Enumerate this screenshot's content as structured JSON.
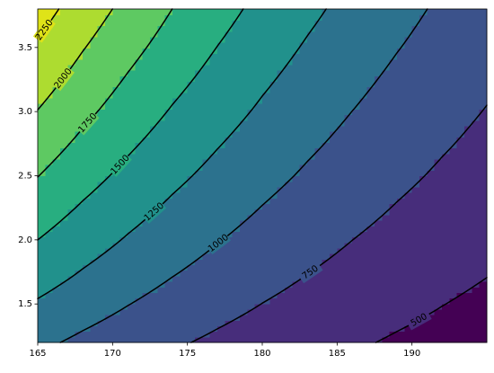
{
  "chart_data": {
    "type": "contour",
    "x": [
      165,
      168,
      171,
      174,
      177,
      180,
      183,
      186,
      189,
      192,
      195
    ],
    "y": [
      1.2,
      1.46,
      1.72,
      1.98,
      2.24,
      2.5,
      2.76,
      3.02,
      3.28,
      3.54,
      3.8
    ],
    "z": [
      [
        1050,
        951,
        862,
        780,
        708,
        641,
        581,
        526,
        477,
        432,
        391
      ],
      [
        1204,
        1091,
        988,
        895,
        811,
        734,
        666,
        603,
        547,
        495,
        448
      ],
      [
        1351,
        1224,
        1109,
        1004,
        911,
        824,
        747,
        677,
        613,
        555,
        503
      ],
      [
        1490,
        1350,
        1223,
        1107,
        1004,
        909,
        824,
        746,
        676,
        612,
        554
      ],
      [
        1624,
        1471,
        1333,
        1207,
        1095,
        991,
        898,
        814,
        737,
        667,
        604
      ],
      [
        1755,
        1590,
        1441,
        1304,
        1183,
        1071,
        971,
        879,
        797,
        721,
        653
      ],
      [
        1880,
        1703,
        1543,
        1397,
        1267,
        1147,
        1040,
        942,
        854,
        773,
        699
      ],
      [
        2003,
        1815,
        1644,
        1488,
        1350,
        1222,
        1108,
        1004,
        909,
        823,
        745
      ],
      [
        2122,
        1923,
        1742,
        1577,
        1430,
        1294,
        1173,
        1063,
        963,
        872,
        789
      ],
      [
        2239,
        2029,
        1838,
        1664,
        1509,
        1366,
        1238,
        1122,
        1017,
        920,
        833
      ],
      [
        2354,
        2133,
        1933,
        1749,
        1587,
        1436,
        1302,
        1179,
        1069,
        967,
        876
      ]
    ],
    "contour_levels": [
      500,
      750,
      1000,
      1250,
      1500,
      1750,
      2000,
      2250
    ],
    "fill_colors": [
      "#440154",
      "#472d7b",
      "#3b528b",
      "#2c728e",
      "#21918c",
      "#28ae80",
      "#5ec962",
      "#addc30",
      "#dfe318"
    ],
    "line_color": "#000000",
    "xlim": [
      165,
      195
    ],
    "ylim": [
      1.2,
      3.8
    ],
    "xticks": [
      165,
      170,
      175,
      180,
      185,
      190
    ],
    "yticks": [
      1.5,
      {
        "value": 2,
        "label": "2.0"
      },
      2.5,
      {
        "value": 3,
        "label": "3.0"
      },
      3.5
    ]
  }
}
